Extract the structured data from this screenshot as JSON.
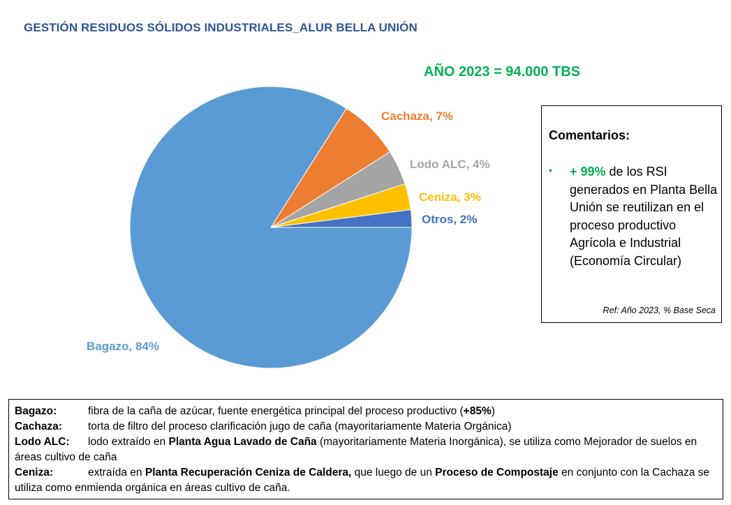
{
  "title": "GESTIÓN RESIDUOS SÓLIDOS INDUSTRIALES_ALUR BELLA UNIÓN",
  "subtitle": "AÑO 2023 = 94.000 TBS",
  "chart_data": {
    "type": "pie",
    "title": "GESTIÓN RESIDUOS SÓLIDOS INDUSTRIALES_ALUR BELLA UNIÓN",
    "subtitle": "AÑO 2023 = 94.000 TBS",
    "slices": [
      {
        "name": "Bagazo",
        "value": 84,
        "color": "#5B9BD5",
        "label": "Bagazo, 84%"
      },
      {
        "name": "Cachaza",
        "value": 7,
        "color": "#ED7D31",
        "label": "Cachaza, 7%"
      },
      {
        "name": "Lodo ALC",
        "value": 4,
        "color": "#A5A5A5",
        "label": "Lodo ALC, 4%"
      },
      {
        "name": "Ceniza",
        "value": 3,
        "color": "#FFC000",
        "label": "Ceniza, 3%"
      },
      {
        "name": "Otros",
        "value": 2,
        "color": "#4472C4",
        "label": "Otros, 2%"
      }
    ],
    "start_angle_deg": 90,
    "direction": "counterclockwise",
    "legend": "none"
  },
  "comments": {
    "title": "Comentarios:",
    "highlight": "+ 99%",
    "text": " de los RSI generados en Planta Bella Unión se reutilizan en el proceso productivo Agrícola e Industrial (Economía Circular)",
    "ref": "Ref: Año 2023, % Base Seca"
  },
  "definitions": {
    "bagazo": {
      "term": "Bagazo:",
      "text1": "fibra de la caña de azúcar, fuente energética principal del proceso productivo (",
      "bold1": "+85%",
      "text2": ")"
    },
    "cachaza": {
      "term": "Cachaza:",
      "text1": "torta de filtro del proceso clarificación jugo de caña (mayoritariamente Materia Orgánica)"
    },
    "lodo": {
      "term": "Lodo ALC:",
      "text1": "lodo extraído en ",
      "bold1": "Planta Agua Lavado de Caña",
      "text2": " (mayoritariamente Materia Inorgánica), se utiliza como Mejorador de suelos en áreas cultivo de caña"
    },
    "ceniza": {
      "term": "Ceniza:",
      "text1": "extraída en ",
      "bold1": "Planta Recuperación Ceniza de Caldera,",
      "text2": " que luego de un ",
      "bold2": "Proceso de Compostaje",
      "text3": " en conjunto con la Cachaza se utiliza como enmienda orgánica en áreas cultivo de caña."
    }
  }
}
